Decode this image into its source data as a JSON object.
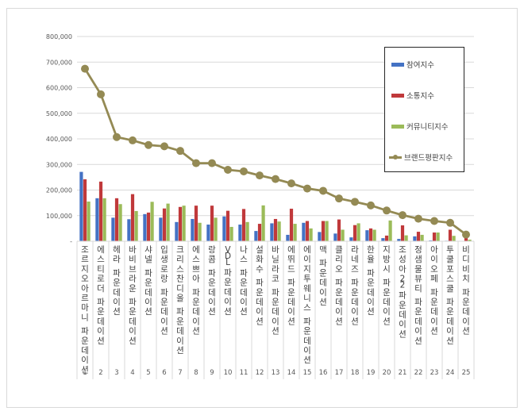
{
  "chart_data": {
    "type": "bar",
    "title": "",
    "xlabel": "",
    "ylabel": "",
    "ylim": [
      0,
      800000
    ],
    "yticks": [
      "-",
      "100,000",
      "200,000",
      "300,000",
      "400,000",
      "500,000",
      "600,000",
      "700,000",
      "800,000"
    ],
    "grid": true,
    "legend_position": "right-inside",
    "categories": [
      "조르지오아르마니 파운데이션",
      "에스티로더 파운데이션",
      "헤라 파운데이션",
      "바비브라운 파운데이션",
      "샤넬 파운데이션",
      "입생로랑 파운데이션",
      "크리스찬디올 파운데이션",
      "에스쁘아 파운데이션",
      "랑콤 파운데이션",
      "VDL 파운데이션",
      "나스 파운데이션",
      "설화수 파운데이션",
      "바닐라코 파운데이션",
      "에뛰드 파운데이션",
      "에이지투웨니스 파운데이션",
      "맥 파운데이션",
      "클리오 파운데이션",
      "라네즈 파운데이션",
      "한율 파운데이션",
      "지방시 파운데이션",
      "조성아22 파운데이션",
      "정샘물뷰티 파운데이션",
      "아이오페 파운데이션",
      "투쿨포스쿨 파운데이션",
      "비디비치 파운데이션"
    ],
    "ranks": [
      "1",
      "2",
      "3",
      "4",
      "5",
      "6",
      "7",
      "8",
      "9",
      "10",
      "11",
      "12",
      "13",
      "14",
      "15",
      "16",
      "17",
      "18",
      "19",
      "20",
      "21",
      "22",
      "23",
      "24",
      "25"
    ],
    "series": [
      {
        "name": "참여지수",
        "type": "bar",
        "color": "#4472c4",
        "values": [
          271000,
          168000,
          92000,
          86000,
          106000,
          92000,
          75000,
          87000,
          65000,
          97000,
          65000,
          40000,
          70000,
          25000,
          72000,
          36000,
          30000,
          15000,
          43000,
          12000,
          9000,
          19000,
          3000,
          2000,
          1000
        ]
      },
      {
        "name": "소통지수",
        "type": "bar",
        "color": "#c0393b",
        "values": [
          242000,
          233000,
          168000,
          184000,
          112000,
          128000,
          134000,
          139000,
          139000,
          119000,
          126000,
          68000,
          87000,
          127000,
          79000,
          79000,
          85000,
          63000,
          50000,
          22000,
          62000,
          37000,
          34000,
          45000,
          15000
        ]
      },
      {
        "name": "커뮤니티지수",
        "type": "bar",
        "color": "#9bbb59",
        "values": [
          155000,
          168000,
          145000,
          118000,
          154000,
          147000,
          139000,
          72000,
          92000,
          56000,
          75000,
          140000,
          77000,
          68000,
          50000,
          79000,
          45000,
          70000,
          45000,
          81000,
          23000,
          25000,
          34000,
          21000,
          6000
        ]
      },
      {
        "name": "브랜드평판지수",
        "type": "line",
        "color": "#948a54",
        "values": [
          674000,
          574000,
          407000,
          394000,
          376000,
          371000,
          353000,
          305000,
          305000,
          279000,
          273000,
          257000,
          243000,
          226000,
          206000,
          197000,
          167000,
          154000,
          140000,
          120000,
          102000,
          88000,
          79000,
          72000,
          26000
        ]
      }
    ]
  },
  "legend": {
    "items": [
      {
        "label": "참여지수",
        "color": "#4472c4",
        "kind": "bar"
      },
      {
        "label": "소통지수",
        "color": "#c0393b",
        "kind": "bar"
      },
      {
        "label": "커뮤니티지수",
        "color": "#9bbb59",
        "kind": "bar"
      },
      {
        "label": "브랜드평판지수",
        "color": "#948a54",
        "kind": "line"
      }
    ]
  }
}
